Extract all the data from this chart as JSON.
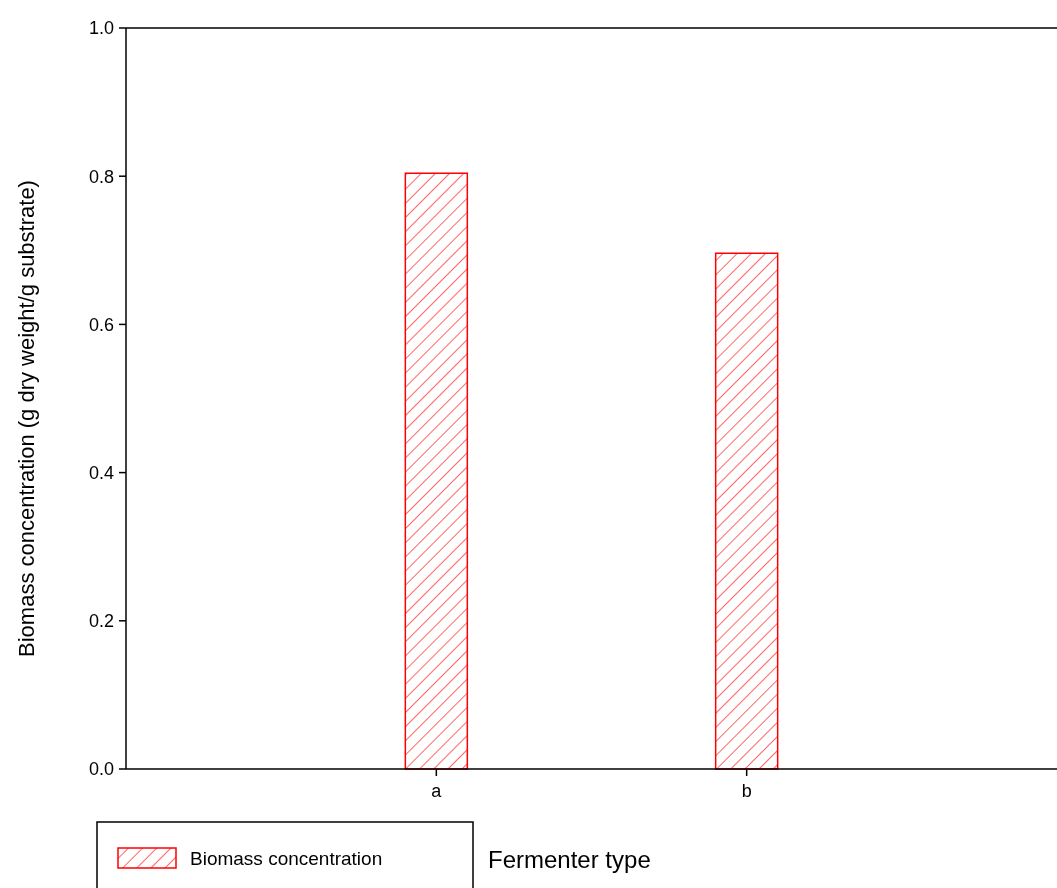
{
  "chart_data": {
    "type": "bar",
    "xlabel": "Fermenter  type",
    "ylabel": "Biomass concentration (g dry weight/g substrate)",
    "categories": [
      "a",
      "b"
    ],
    "series": [
      {
        "name": "Biomass concentration",
        "color": "#ff0000",
        "values": [
          0.804,
          0.696
        ]
      }
    ],
    "ylim": [
      0,
      1
    ],
    "yticks": [
      {
        "value": 0,
        "label": "0.0"
      },
      {
        "value": 0.2,
        "label": "0.2"
      },
      {
        "value": 0.4,
        "label": "0.4"
      },
      {
        "value": 0.6,
        "label": "0.6"
      },
      {
        "value": 0.8,
        "label": "0.8"
      },
      {
        "value": 1,
        "label": "1.0"
      }
    ],
    "grid": false,
    "legend": "bottom left"
  }
}
